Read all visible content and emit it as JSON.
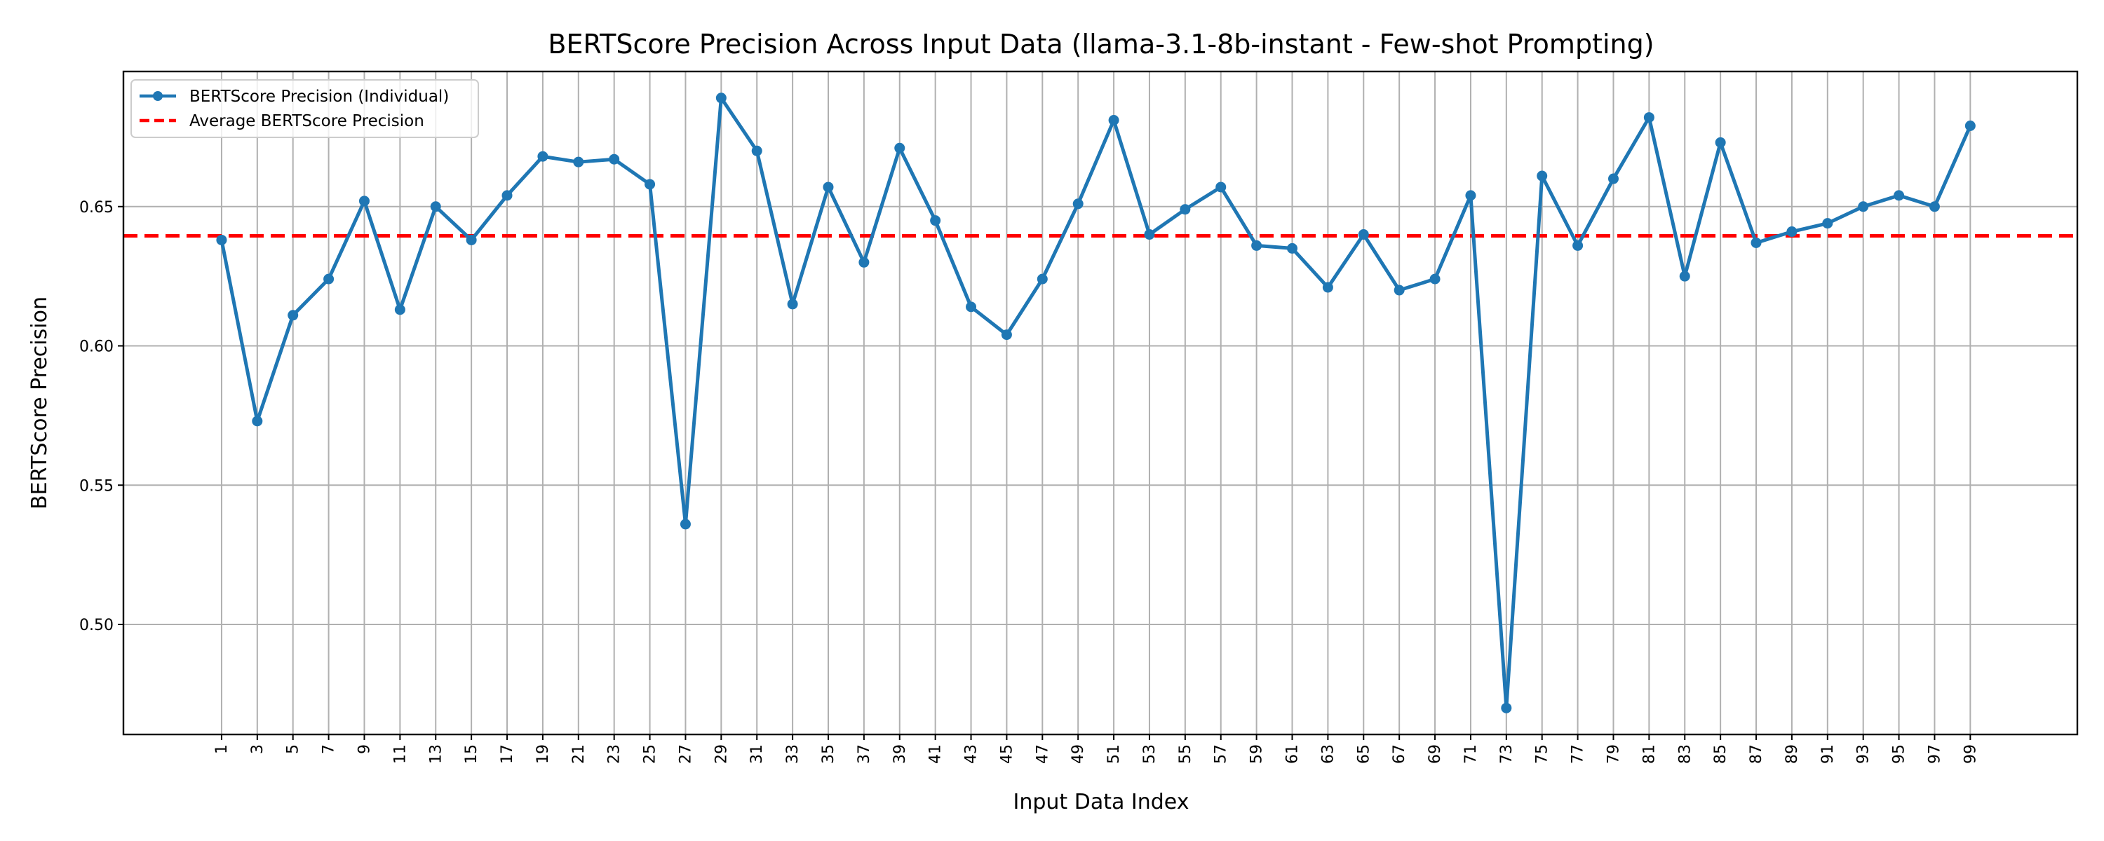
{
  "chart_data": {
    "type": "line",
    "title": "BERTScore Precision Across Input Data (llama-3.1-8b-instant - Few-shot Prompting)",
    "xlabel": "Input Data Index",
    "ylabel": "BERTScore Precision",
    "xlim": [
      -4.5,
      105
    ],
    "ylim": [
      0.4605,
      0.6985
    ],
    "yticks": [
      0.5,
      0.55,
      0.6,
      0.65
    ],
    "ytick_labels": [
      "0.50",
      "0.55",
      "0.60",
      "0.65"
    ],
    "xticks": [
      1,
      3,
      5,
      7,
      9,
      11,
      13,
      15,
      17,
      19,
      21,
      23,
      25,
      27,
      29,
      31,
      33,
      35,
      37,
      39,
      41,
      43,
      45,
      47,
      49,
      51,
      53,
      55,
      57,
      59,
      61,
      63,
      65,
      67,
      69,
      71,
      73,
      75,
      77,
      79,
      81,
      83,
      85,
      87,
      89,
      91,
      93,
      95,
      97,
      99
    ],
    "xtick_labels": [
      "1",
      "3",
      "5",
      "7",
      "9",
      "11",
      "13",
      "15",
      "17",
      "19",
      "21",
      "23",
      "25",
      "27",
      "29",
      "31",
      "33",
      "35",
      "37",
      "39",
      "41",
      "43",
      "45",
      "47",
      "49",
      "51",
      "53",
      "55",
      "57",
      "59",
      "61",
      "63",
      "65",
      "67",
      "69",
      "71",
      "73",
      "75",
      "77",
      "79",
      "81",
      "83",
      "85",
      "87",
      "89",
      "91",
      "93",
      "95",
      "97",
      "99"
    ],
    "grid": true,
    "legend_position": "top-left",
    "series": [
      {
        "name": "BERTScore Precision (Individual)",
        "color": "#1f77b4",
        "style": "solid-with-markers",
        "x": [
          1,
          3,
          5,
          7,
          9,
          11,
          13,
          15,
          17,
          19,
          21,
          23,
          25,
          27,
          29,
          31,
          33,
          35,
          37,
          39,
          41,
          43,
          45,
          47,
          49,
          51,
          53,
          55,
          57,
          59,
          61,
          63,
          65,
          67,
          69,
          71,
          73,
          75,
          77,
          79,
          81,
          83,
          85,
          87,
          89,
          91,
          93,
          95,
          97,
          99
        ],
        "values": [
          0.638,
          0.573,
          0.611,
          0.624,
          0.652,
          0.613,
          0.65,
          0.638,
          0.654,
          0.668,
          0.666,
          0.667,
          0.658,
          0.536,
          0.689,
          0.67,
          0.615,
          0.657,
          0.63,
          0.671,
          0.645,
          0.614,
          0.604,
          0.624,
          0.651,
          0.681,
          0.64,
          0.649,
          0.657,
          0.636,
          0.635,
          0.621,
          0.64,
          0.62,
          0.624,
          0.654,
          0.47,
          0.661,
          0.636,
          0.66,
          0.682,
          0.625,
          0.673,
          0.637,
          0.641,
          0.644,
          0.65,
          0.654,
          0.65,
          0.679
        ]
      },
      {
        "name": "Average BERTScore Precision",
        "color": "#ff0000",
        "style": "dashed-horizontal",
        "y": 0.6395
      }
    ]
  }
}
